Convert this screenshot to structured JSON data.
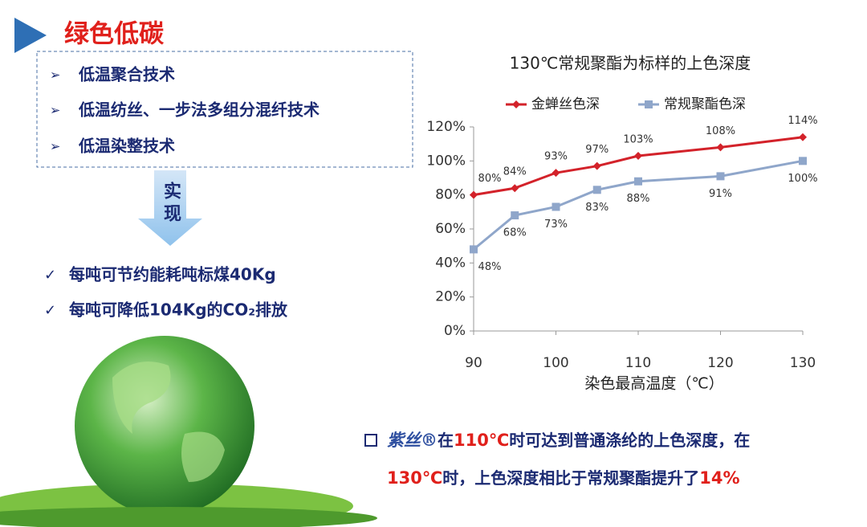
{
  "header": {
    "title": "绿色低碳"
  },
  "tech_list": [
    "低温聚合技术",
    "低温纺丝、一步法多组分混纤技术",
    "低温染整技术"
  ],
  "arrow_text": "实现",
  "benefits": [
    "每吨可节约能耗吨标煤40Kg",
    "每吨可降低104Kg的CO₂排放"
  ],
  "note": {
    "parts": [
      "紫丝®",
      "在",
      "110℃",
      "时可达到普通涤纶的上色深度，在",
      "130℃",
      "时，上色深度相比于常规聚酯提升了",
      "14%"
    ]
  },
  "chart_data": {
    "type": "line",
    "title": "130℃常规聚酯为标样的上色深度",
    "x_label": "染色最高温度（℃）",
    "x": [
      90,
      95,
      100,
      105,
      110,
      120,
      130
    ],
    "xlim": [
      90,
      130
    ],
    "xticks": [
      90,
      100,
      110,
      120,
      130
    ],
    "ylim": [
      0,
      120
    ],
    "yticks": [
      {
        "value": 0,
        "label": "0%"
      },
      {
        "value": 20,
        "label": "20%"
      },
      {
        "value": 40,
        "label": "40%"
      },
      {
        "value": 60,
        "label": "60%"
      },
      {
        "value": 80,
        "label": "80%"
      },
      {
        "value": 100,
        "label": "100%"
      },
      {
        "value": 120,
        "label": "120%"
      }
    ],
    "grid": false,
    "legend": "top",
    "series": [
      {
        "name": "金蝉丝色深",
        "color": "#d3222a",
        "marker": "diamond",
        "values": [
          80,
          84,
          93,
          97,
          103,
          108,
          114
        ],
        "value_labels": [
          "80%",
          "84%",
          "93%",
          "97%",
          "103%",
          "108%",
          "114%"
        ]
      },
      {
        "name": "常规聚酯色深",
        "color": "#8fa6ca",
        "marker": "square",
        "values": [
          48,
          68,
          73,
          83,
          88,
          91,
          100
        ],
        "value_labels": [
          "48%",
          "68%",
          "73%",
          "83%",
          "88%",
          "91%",
          "100%"
        ]
      }
    ]
  }
}
